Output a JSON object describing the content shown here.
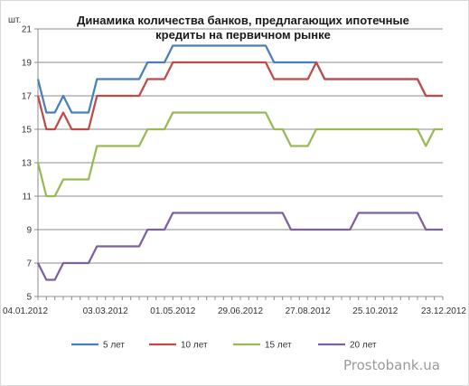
{
  "chart_data": {
    "type": "line",
    "title_line1": "Динамика количества банков, предлагающих ипотечные",
    "title_line2": "кредиты на первичном рынке",
    "y_unit": "шт.",
    "ylim": [
      5,
      21
    ],
    "yticks": [
      5,
      7,
      9,
      11,
      13,
      15,
      17,
      19,
      21
    ],
    "grid": "horizontal",
    "legend_position": "bottom",
    "x_tick_labels": [
      "04.01.2012",
      "03.03.2012",
      "01.05.2012",
      "29.06.2012",
      "27.08.2012",
      "25.10.2012",
      "23.12.2012"
    ],
    "x_tick_index": [
      0,
      8,
      16,
      24,
      32,
      40,
      48
    ],
    "x_count": 49,
    "series": [
      {
        "name": "5 лет",
        "color": "#4a7ebb",
        "values": [
          18,
          16,
          16,
          17,
          16,
          16,
          16,
          18,
          18,
          18,
          18,
          18,
          18,
          19,
          19,
          19,
          20,
          20,
          20,
          20,
          20,
          20,
          20,
          20,
          20,
          20,
          20,
          20,
          19,
          19,
          19,
          19,
          19,
          19,
          18,
          18,
          18,
          18,
          18,
          18,
          18,
          18,
          18,
          18,
          18,
          18,
          17,
          17,
          17
        ]
      },
      {
        "name": "10 лет",
        "color": "#be4b48",
        "values": [
          17,
          15,
          15,
          16,
          15,
          15,
          15,
          17,
          17,
          17,
          17,
          17,
          17,
          18,
          18,
          18,
          19,
          19,
          19,
          19,
          19,
          19,
          19,
          19,
          19,
          19,
          19,
          19,
          18,
          18,
          18,
          18,
          18,
          19,
          18,
          18,
          18,
          18,
          18,
          18,
          18,
          18,
          18,
          18,
          18,
          18,
          17,
          17,
          17
        ]
      },
      {
        "name": "15 лет",
        "color": "#98b954",
        "values": [
          13,
          11,
          11,
          12,
          12,
          12,
          12,
          14,
          14,
          14,
          14,
          14,
          14,
          15,
          15,
          15,
          16,
          16,
          16,
          16,
          16,
          16,
          16,
          16,
          16,
          16,
          16,
          16,
          15,
          15,
          14,
          14,
          14,
          15,
          15,
          15,
          15,
          15,
          15,
          15,
          15,
          15,
          15,
          15,
          15,
          15,
          14,
          15,
          15
        ]
      },
      {
        "name": "20 лет",
        "color": "#7d60a0",
        "values": [
          7,
          6,
          6,
          7,
          7,
          7,
          7,
          8,
          8,
          8,
          8,
          8,
          8,
          9,
          9,
          9,
          10,
          10,
          10,
          10,
          10,
          10,
          10,
          10,
          10,
          10,
          10,
          10,
          10,
          10,
          9,
          9,
          9,
          9,
          9,
          9,
          9,
          9,
          10,
          10,
          10,
          10,
          10,
          10,
          10,
          10,
          9,
          9,
          9
        ]
      }
    ]
  },
  "watermark": "Prostobank.ua"
}
